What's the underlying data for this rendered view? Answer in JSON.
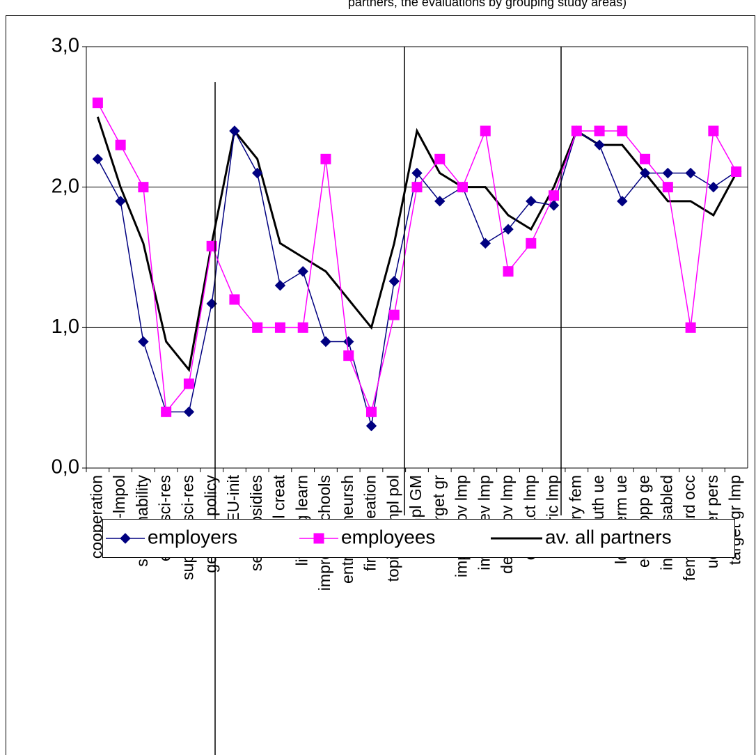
{
  "chart_data": {
    "type": "line",
    "title": "partners, the evaluations by grouping study areas)",
    "categories": [
      "cooperation",
      "ecpol-lmpol",
      "sustainability",
      "empl sci-res",
      "support sci-res",
      "generic policy",
      "impl EU-init",
      "sec subsidies",
      "empl creat",
      "lifelong learn",
      "improve schools",
      "entrepreneursh",
      "firms creation",
      "topics empl pol",
      "impl GM",
      "target gr",
      "impl innov lmp",
      "impl prev lmp",
      "dev innov lmp",
      "effic act lmp",
      "generic lmp",
      "reentry fem",
      "youth ue",
      "long term ue",
      "equal opp ge",
      "intgr disabled",
      "fem nontrd occ",
      "ue older pers",
      "target gr lmp"
    ],
    "series": [
      {
        "name": "employers",
        "color": "#000080",
        "marker": "diamond",
        "values": [
          2.2,
          1.9,
          0.9,
          0.4,
          0.4,
          1.17,
          2.4,
          2.1,
          1.3,
          1.4,
          0.9,
          0.9,
          0.3,
          1.33,
          2.1,
          1.9,
          2.0,
          1.6,
          1.7,
          1.9,
          1.87,
          2.4,
          2.3,
          1.9,
          2.1,
          2.1,
          2.1,
          2.0,
          2.11
        ]
      },
      {
        "name": "employees",
        "color": "#ff00ff",
        "marker": "square",
        "values": [
          2.6,
          2.3,
          2.0,
          0.4,
          0.6,
          1.58,
          1.2,
          1.0,
          1.0,
          1.0,
          2.2,
          0.8,
          0.4,
          1.09,
          2.0,
          2.2,
          2.0,
          2.4,
          1.4,
          1.6,
          1.94,
          2.4,
          2.4,
          2.4,
          2.2,
          2.0,
          1.0,
          2.4,
          2.11
        ]
      },
      {
        "name": "av. all partners",
        "color": "#000000",
        "marker": "none",
        "values": [
          2.5,
          2.0,
          1.6,
          0.9,
          0.7,
          1.6,
          2.4,
          2.2,
          1.6,
          1.5,
          1.4,
          1.2,
          1.0,
          1.6,
          2.4,
          2.1,
          2.0,
          2.0,
          1.8,
          1.7,
          2.0,
          2.4,
          2.3,
          2.3,
          2.1,
          1.9,
          1.9,
          1.8,
          2.1
        ]
      }
    ],
    "ylim": [
      0,
      3
    ],
    "yticks": [
      {
        "value": 0,
        "label": "0,0"
      },
      {
        "value": 1,
        "label": "1,0"
      },
      {
        "value": 2,
        "label": "2,0"
      },
      {
        "value": 3,
        "label": "3,0"
      }
    ],
    "grid": true,
    "legend": "bottom"
  }
}
